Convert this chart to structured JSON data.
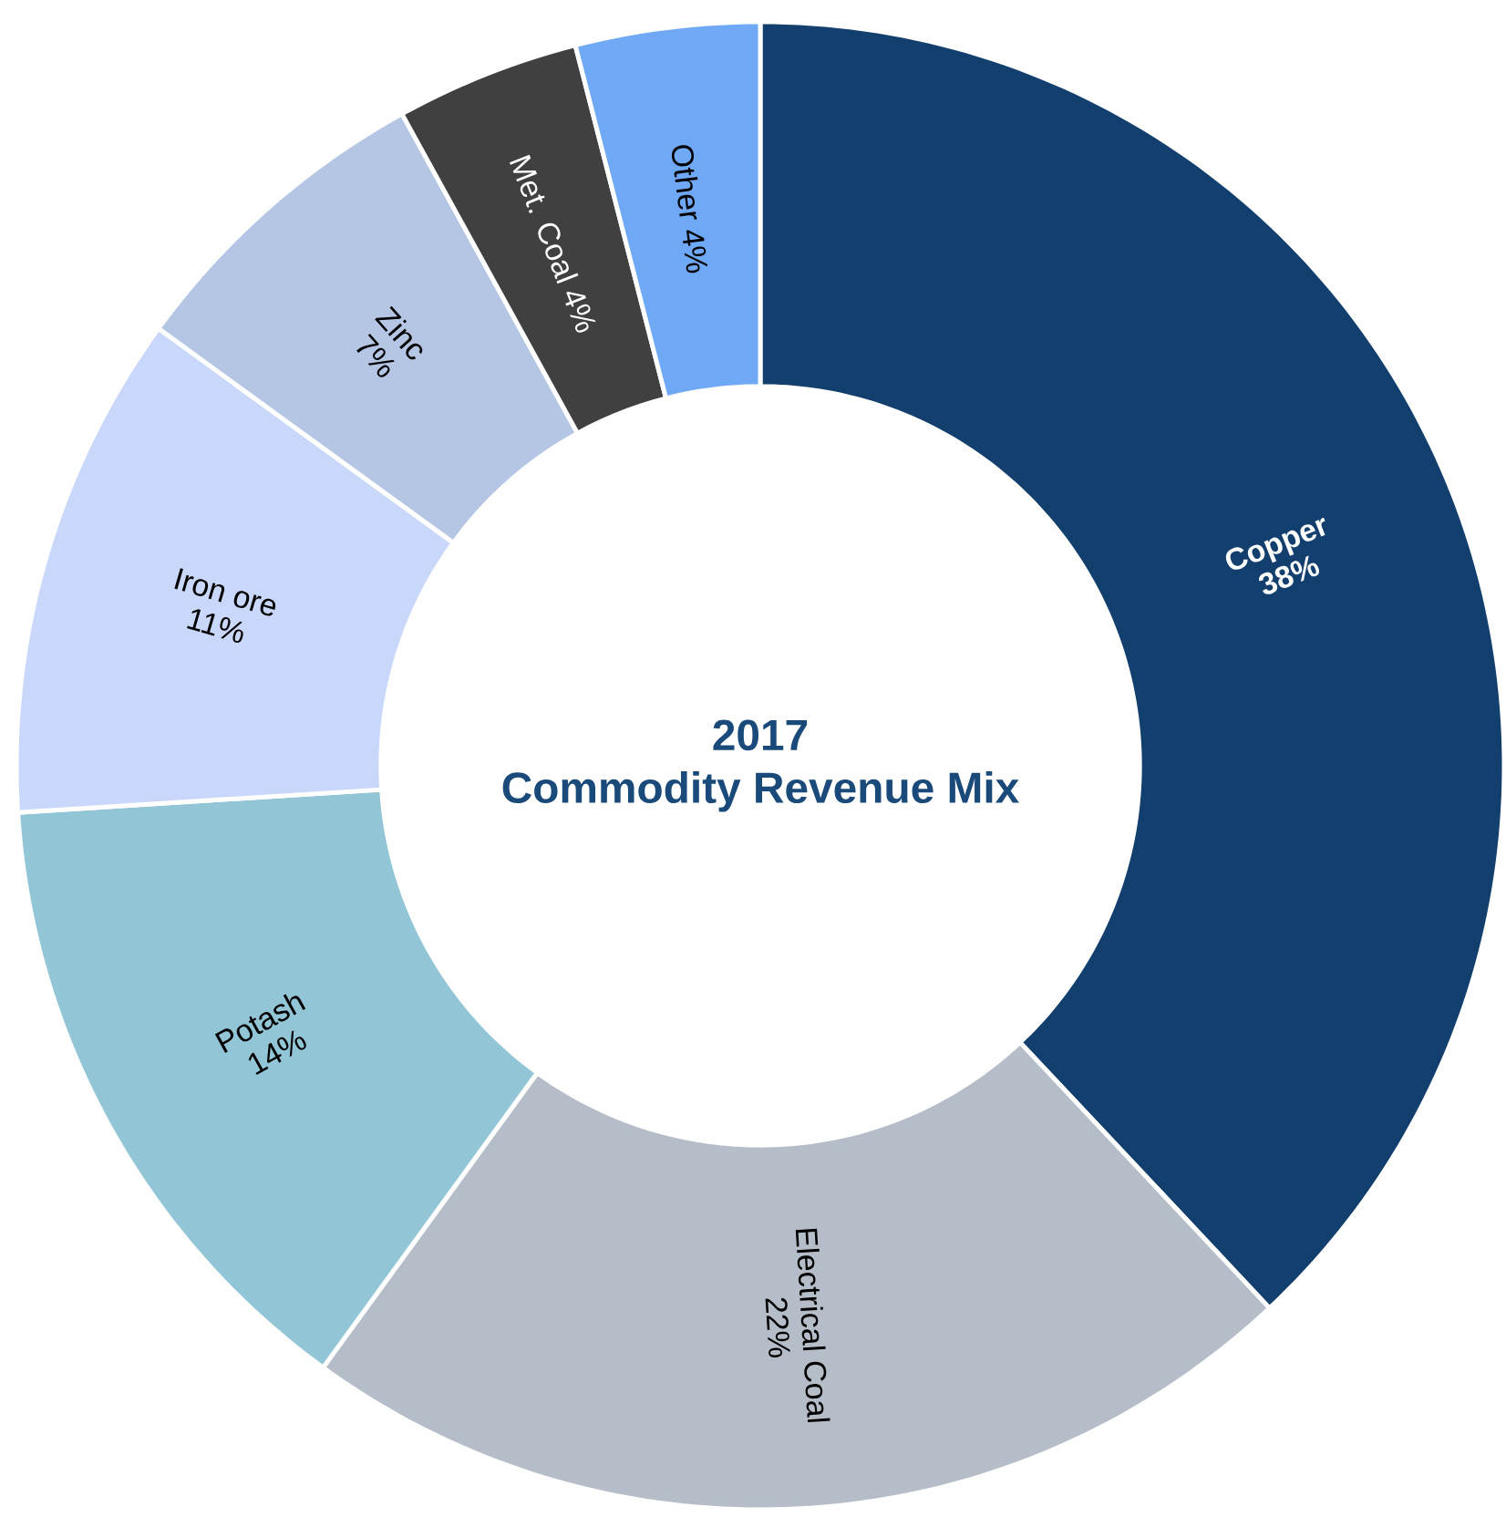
{
  "chart_data": {
    "type": "donut",
    "title": "2017",
    "subtitle": "Commodity Revenue Mix",
    "categories": [
      "Copper",
      "Electrical Coal",
      "Potash",
      "Iron ore",
      "Zinc",
      "Met. Coal",
      "Other"
    ],
    "values": [
      38,
      22,
      14,
      11,
      7,
      4,
      4
    ],
    "value_labels": [
      "38%",
      "22%",
      "14%",
      "11%",
      "7%",
      "4%",
      "4%"
    ],
    "colors": [
      "#133f6e",
      "#b5bec8",
      "#92c5d6",
      "#c9d7fb",
      "#b4c6e4",
      "#404040",
      "#6fa8f5"
    ]
  }
}
